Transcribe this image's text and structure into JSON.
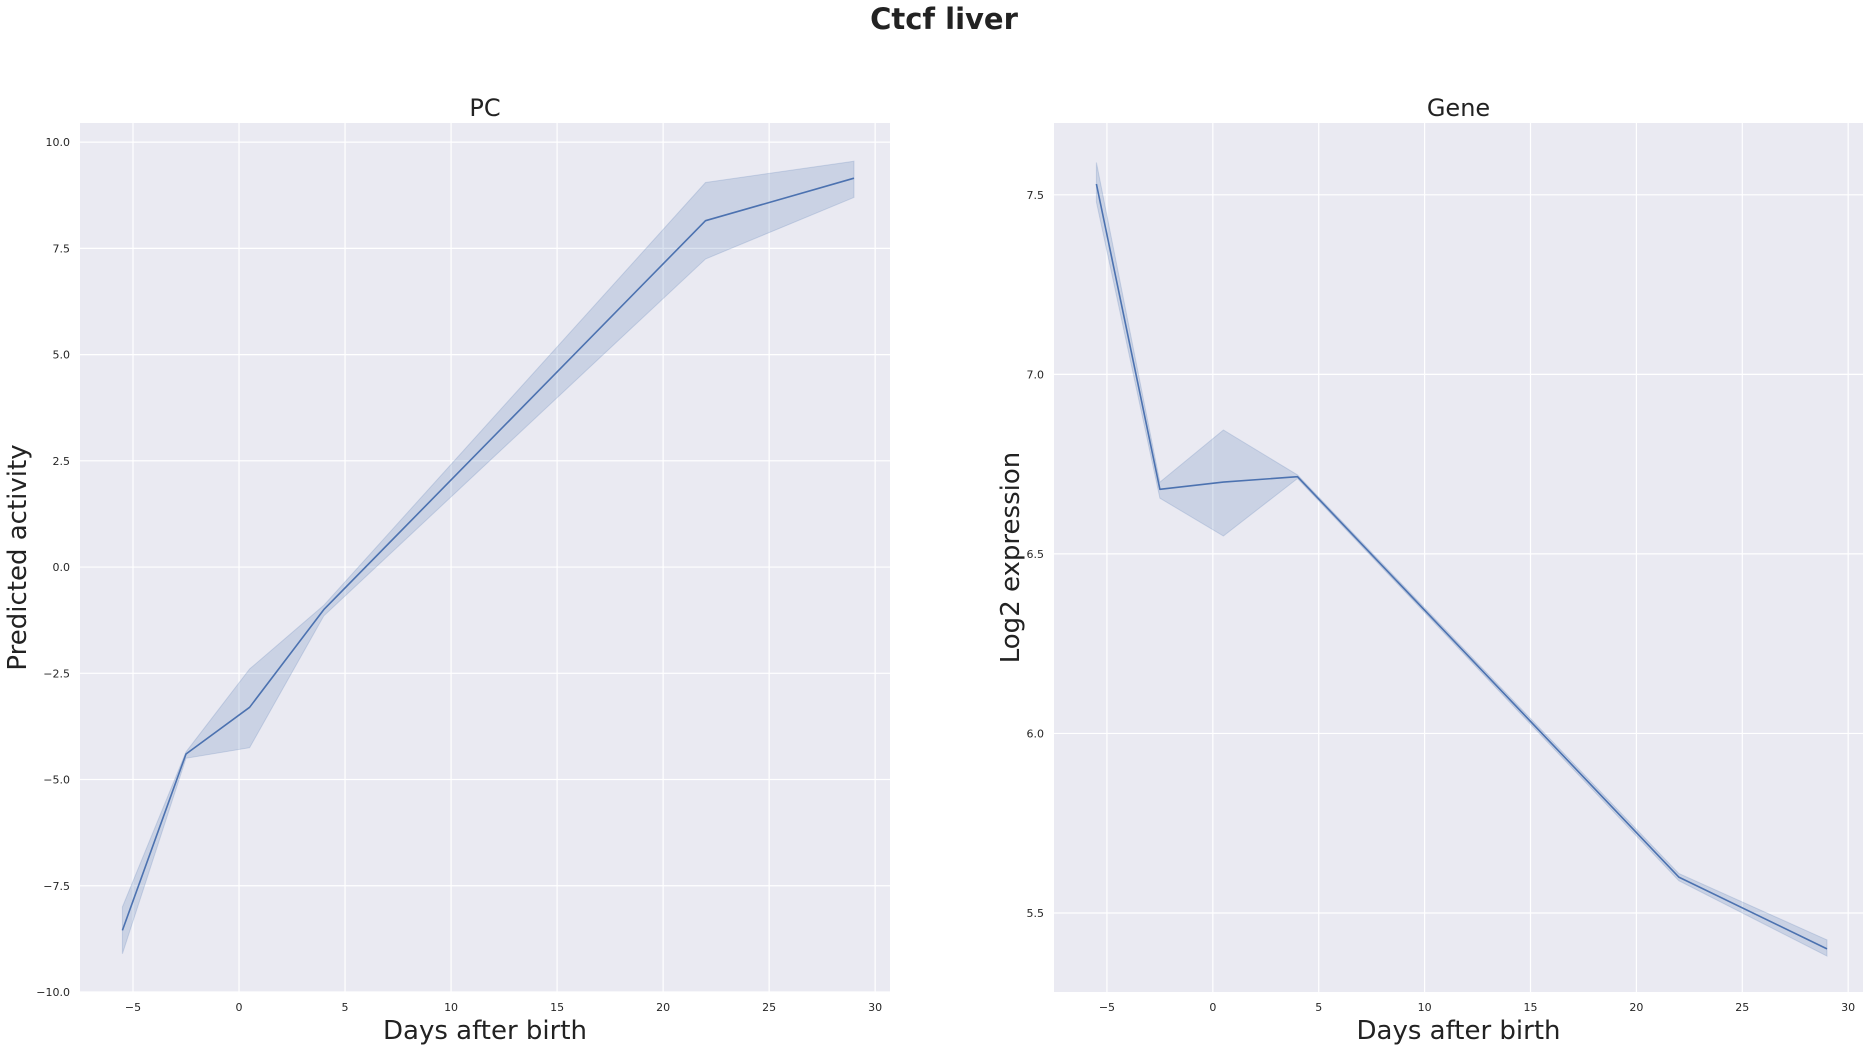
{
  "figure": {
    "title": "Ctcf liver"
  },
  "colors": {
    "line": "#4c72b0",
    "band": "#4c72b0",
    "plot_background": "#eaeaf2",
    "grid": "#ffffff"
  },
  "chart_data": [
    {
      "type": "line",
      "title": "PC",
      "xlabel": "Days after birth",
      "ylabel": "Predicted activity",
      "xlim": [
        -7.5,
        30.7
      ],
      "ylim": [
        -10.0,
        10.45
      ],
      "xticks": [
        -5,
        0,
        5,
        10,
        15,
        20,
        25,
        30
      ],
      "xtick_labels": [
        "−5",
        "0",
        "5",
        "10",
        "15",
        "20",
        "25",
        "30"
      ],
      "yticks": [
        -10.0,
        -7.5,
        -5.0,
        -2.5,
        0.0,
        2.5,
        5.0,
        7.5,
        10.0
      ],
      "ytick_labels": [
        "−10.0",
        "−7.5",
        "−5.0",
        "−2.5",
        "0.0",
        "2.5",
        "5.0",
        "7.5",
        "10.0"
      ],
      "grid": true,
      "x": [
        -5.5,
        -2.5,
        0.5,
        4,
        22,
        29
      ],
      "y": [
        -8.55,
        -4.4,
        -3.3,
        -1.0,
        8.15,
        9.15
      ],
      "ci_lower": [
        -9.1,
        -4.5,
        -4.25,
        -1.15,
        7.25,
        8.7
      ],
      "ci_upper": [
        -8.0,
        -4.35,
        -2.4,
        -0.9,
        9.05,
        9.55
      ]
    },
    {
      "type": "line",
      "title": "Gene",
      "xlabel": "Days after birth",
      "ylabel": "Log2 expression",
      "xlim": [
        -7.5,
        30.7
      ],
      "ylim": [
        5.28,
        7.7
      ],
      "xticks": [
        -5,
        0,
        5,
        10,
        15,
        20,
        25,
        30
      ],
      "xtick_labels": [
        "−5",
        "0",
        "5",
        "10",
        "15",
        "20",
        "25",
        "30"
      ],
      "yticks": [
        5.5,
        6.0,
        6.5,
        7.0,
        7.5
      ],
      "ytick_labels": [
        "5.5",
        "6.0",
        "6.5",
        "7.0",
        "7.5"
      ],
      "grid": true,
      "x": [
        -5.5,
        -2.5,
        0.5,
        4,
        22,
        29
      ],
      "y": [
        7.53,
        6.68,
        6.7,
        6.715,
        5.6,
        5.4
      ],
      "ci_lower": [
        7.48,
        6.655,
        6.55,
        6.71,
        5.59,
        5.38
      ],
      "ci_upper": [
        7.59,
        6.7,
        6.845,
        6.72,
        5.61,
        5.425
      ]
    }
  ]
}
